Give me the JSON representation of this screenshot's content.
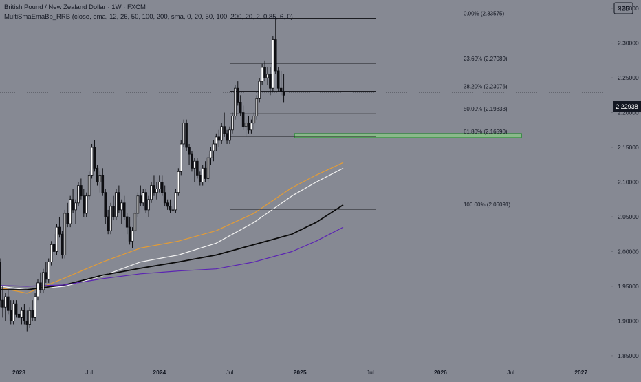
{
  "header": {
    "title": "British Pound / New Zealand Dollar · 1W · FXCM",
    "indicator": "MultiSmaEmaBb_RRB (close, ema, 12, 26, 50, 100, 200, sma, 0, 20, 50, 100, 200, 20, 2, 0.85, 6, 0)"
  },
  "currency_label": "NZD",
  "current_price": "2.22938",
  "colors": {
    "background": "#868993",
    "candle": "#0e0f13",
    "fib_line": "#1c1d22",
    "ema_orange": "#e39c36",
    "ema_white": "#f2f2f2",
    "ema_black": "#0a0a0a",
    "ema_purple": "#5b24b3",
    "zone_fill": "#8ab98a",
    "zone_border": "#2f8a3a",
    "price_badge": "#131722"
  },
  "chart_data": {
    "type": "candlestick",
    "symbol": "GBPNZD",
    "timeframe": "1W",
    "y_axis": {
      "ylim": [
        1.84,
        2.36
      ],
      "ticks": [
        "1.85000",
        "1.90000",
        "1.95000",
        "2.00000",
        "2.05000",
        "2.10000",
        "2.15000",
        "2.20000",
        "2.25000",
        "2.30000",
        "2.35000"
      ]
    },
    "x_axis": {
      "range": [
        "2022-11-14",
        "2027-03-15"
      ],
      "ticks": [
        {
          "label": "2023",
          "date": "2023-01-02"
        },
        {
          "label": "Jul",
          "date": "2023-07-03"
        },
        {
          "label": "2024",
          "date": "2024-01-01"
        },
        {
          "label": "Jul",
          "date": "2024-07-01"
        },
        {
          "label": "2025",
          "date": "2024-12-30"
        },
        {
          "label": "Jul",
          "date": "2025-06-30"
        },
        {
          "label": "2026",
          "date": "2025-12-29"
        },
        {
          "label": "Jul",
          "date": "2026-06-29"
        },
        {
          "label": "2027",
          "date": "2026-12-28"
        }
      ]
    },
    "candles": {
      "start": "2022-11-14",
      "interval_days": 7,
      "ohlc": [
        [
          1.985,
          1.99,
          1.92,
          1.93
        ],
        [
          1.93,
          1.95,
          1.905,
          1.92
        ],
        [
          1.92,
          1.94,
          1.9,
          1.935
        ],
        [
          1.935,
          1.945,
          1.91,
          1.915
        ],
        [
          1.915,
          1.93,
          1.895,
          1.9
        ],
        [
          1.9,
          1.93,
          1.895,
          1.925
        ],
        [
          1.925,
          1.93,
          1.905,
          1.91
        ],
        [
          1.91,
          1.925,
          1.89,
          1.905
        ],
        [
          1.905,
          1.92,
          1.895,
          1.915
        ],
        [
          1.915,
          1.925,
          1.895,
          1.9
        ],
        [
          1.9,
          1.915,
          1.885,
          1.895
        ],
        [
          1.895,
          1.92,
          1.89,
          1.915
        ],
        [
          1.915,
          1.93,
          1.9,
          1.905
        ],
        [
          1.905,
          1.94,
          1.9,
          1.935
        ],
        [
          1.935,
          1.96,
          1.93,
          1.955
        ],
        [
          1.955,
          1.97,
          1.94,
          1.945
        ],
        [
          1.945,
          1.975,
          1.94,
          1.97
        ],
        [
          1.97,
          1.985,
          1.955,
          1.96
        ],
        [
          1.96,
          1.99,
          1.955,
          1.985
        ],
        [
          1.985,
          2.015,
          1.98,
          2.01
        ],
        [
          2.01,
          2.025,
          1.995,
          2.0
        ],
        [
          2.0,
          2.04,
          1.995,
          2.035
        ],
        [
          2.035,
          2.05,
          2.02,
          2.025
        ],
        [
          2.025,
          2.03,
          1.99,
          1.995
        ],
        [
          1.995,
          2.06,
          1.99,
          2.055
        ],
        [
          2.055,
          2.07,
          2.035,
          2.04
        ],
        [
          2.04,
          2.08,
          2.035,
          2.075
        ],
        [
          2.075,
          2.09,
          2.055,
          2.06
        ],
        [
          2.06,
          2.075,
          2.04,
          2.07
        ],
        [
          2.07,
          2.1,
          2.065,
          2.095
        ],
        [
          2.095,
          2.105,
          2.075,
          2.08
        ],
        [
          2.08,
          2.09,
          2.05,
          2.055
        ],
        [
          2.055,
          2.085,
          2.05,
          2.08
        ],
        [
          2.08,
          2.115,
          2.075,
          2.11
        ],
        [
          2.11,
          2.155,
          2.105,
          2.15
        ],
        [
          2.15,
          2.16,
          2.115,
          2.12
        ],
        [
          2.12,
          2.125,
          2.095,
          2.1
        ],
        [
          2.1,
          2.115,
          2.085,
          2.11
        ],
        [
          2.11,
          2.12,
          2.08,
          2.085
        ],
        [
          2.085,
          2.09,
          2.04,
          2.05
        ],
        [
          2.05,
          2.06,
          2.025,
          2.03
        ],
        [
          2.03,
          2.07,
          2.025,
          2.065
        ],
        [
          2.065,
          2.08,
          2.045,
          2.05
        ],
        [
          2.05,
          2.09,
          2.045,
          2.085
        ],
        [
          2.085,
          2.095,
          2.055,
          2.06
        ],
        [
          2.06,
          2.075,
          2.04,
          2.07
        ],
        [
          2.07,
          2.08,
          2.045,
          2.05
        ],
        [
          2.05,
          2.055,
          2.025,
          2.035
        ],
        [
          2.035,
          2.05,
          2.01,
          2.015
        ],
        [
          2.015,
          2.035,
          2.005,
          2.03
        ],
        [
          2.03,
          2.06,
          2.025,
          2.055
        ],
        [
          2.055,
          2.085,
          2.05,
          2.08
        ],
        [
          2.08,
          2.095,
          2.065,
          2.07
        ],
        [
          2.07,
          2.09,
          2.065,
          2.085
        ],
        [
          2.085,
          2.09,
          2.055,
          2.06
        ],
        [
          2.06,
          2.08,
          2.05,
          2.075
        ],
        [
          2.075,
          2.1,
          2.07,
          2.095
        ],
        [
          2.095,
          2.11,
          2.08,
          2.085
        ],
        [
          2.085,
          2.1,
          2.075,
          2.09
        ],
        [
          2.09,
          2.11,
          2.085,
          2.1
        ],
        [
          2.1,
          2.11,
          2.08,
          2.085
        ],
        [
          2.085,
          2.095,
          2.065,
          2.07
        ],
        [
          2.07,
          2.075,
          2.06,
          2.065
        ],
        [
          2.065,
          2.075,
          2.055,
          2.06
        ],
        [
          2.06,
          2.065,
          2.055,
          2.06
        ],
        [
          2.06,
          2.09,
          2.055,
          2.085
        ],
        [
          2.085,
          2.12,
          2.08,
          2.115
        ],
        [
          2.115,
          2.16,
          2.11,
          2.155
        ],
        [
          2.155,
          2.19,
          2.15,
          2.185
        ],
        [
          2.185,
          2.19,
          2.145,
          2.15
        ],
        [
          2.15,
          2.155,
          2.125,
          2.14
        ],
        [
          2.14,
          2.145,
          2.115,
          2.12
        ],
        [
          2.12,
          2.135,
          2.1,
          2.13
        ],
        [
          2.13,
          2.135,
          2.105,
          2.11
        ],
        [
          2.11,
          2.115,
          2.095,
          2.1
        ],
        [
          2.1,
          2.125,
          2.095,
          2.12
        ],
        [
          2.12,
          2.13,
          2.1,
          2.105
        ],
        [
          2.105,
          2.14,
          2.1,
          2.135
        ],
        [
          2.135,
          2.15,
          2.125,
          2.145
        ],
        [
          2.145,
          2.16,
          2.13,
          2.155
        ],
        [
          2.155,
          2.17,
          2.145,
          2.165
        ],
        [
          2.165,
          2.175,
          2.15,
          2.16
        ],
        [
          2.16,
          2.185,
          2.155,
          2.18
        ],
        [
          2.18,
          2.2,
          2.165,
          2.17
        ],
        [
          2.17,
          2.175,
          2.155,
          2.16
        ],
        [
          2.16,
          2.18,
          2.155,
          2.175
        ],
        [
          2.175,
          2.2,
          2.17,
          2.195
        ],
        [
          2.195,
          2.24,
          2.19,
          2.235
        ],
        [
          2.235,
          2.245,
          2.21,
          2.215
        ],
        [
          2.215,
          2.225,
          2.195,
          2.2
        ],
        [
          2.2,
          2.21,
          2.175,
          2.18
        ],
        [
          2.18,
          2.19,
          2.165,
          2.185
        ],
        [
          2.185,
          2.195,
          2.17,
          2.175
        ],
        [
          2.175,
          2.19,
          2.17,
          2.185
        ],
        [
          2.185,
          2.2,
          2.175,
          2.195
        ],
        [
          2.195,
          2.225,
          2.19,
          2.22
        ],
        [
          2.22,
          2.25,
          2.215,
          2.245
        ],
        [
          2.245,
          2.27,
          2.24,
          2.265
        ],
        [
          2.265,
          2.275,
          2.245,
          2.25
        ],
        [
          2.25,
          2.265,
          2.24,
          2.255
        ],
        [
          2.255,
          2.265,
          2.225,
          2.235
        ],
        [
          2.235,
          2.31,
          2.23,
          2.305
        ],
        [
          2.305,
          2.336,
          2.255,
          2.26
        ],
        [
          2.26,
          2.265,
          2.23,
          2.235
        ],
        [
          2.235,
          2.26,
          2.225,
          2.23
        ],
        [
          2.23,
          2.255,
          2.215,
          2.225
        ]
      ]
    },
    "moving_averages": [
      {
        "color": "#e39c36",
        "x": [
          "2022-11-14",
          "2023-01-23",
          "2023-05-01",
          "2023-08-07",
          "2023-11-13",
          "2024-02-19",
          "2024-05-27",
          "2024-09-02",
          "2024-12-09",
          "2025-02-10",
          "2025-04-21"
        ],
        "y": [
          1.948,
          1.94,
          1.962,
          1.985,
          2.005,
          2.015,
          2.03,
          2.055,
          2.092,
          2.11,
          2.128
        ]
      },
      {
        "color": "#f2f2f2",
        "x": [
          "2022-11-14",
          "2023-01-23",
          "2023-05-01",
          "2023-08-07",
          "2023-11-13",
          "2024-02-19",
          "2024-05-27",
          "2024-09-02",
          "2024-12-09",
          "2025-02-10",
          "2025-04-21"
        ],
        "y": [
          1.95,
          1.945,
          1.95,
          1.965,
          1.985,
          1.995,
          2.012,
          2.042,
          2.08,
          2.1,
          2.12
        ]
      },
      {
        "color": "#0a0a0a",
        "x": [
          "2022-11-14",
          "2023-01-23",
          "2023-05-01",
          "2023-08-07",
          "2023-11-13",
          "2024-02-19",
          "2024-05-27",
          "2024-09-02",
          "2024-12-09",
          "2025-02-10",
          "2025-04-21"
        ],
        "y": [
          1.945,
          1.945,
          1.952,
          1.966,
          1.976,
          1.985,
          1.995,
          2.01,
          2.025,
          2.042,
          2.067
        ]
      },
      {
        "color": "#5b24b3",
        "x": [
          "2022-11-14",
          "2023-01-23",
          "2023-05-01",
          "2023-08-07",
          "2023-11-13",
          "2024-02-19",
          "2024-05-27",
          "2024-09-02",
          "2024-12-09",
          "2025-02-10",
          "2025-04-21"
        ],
        "y": [
          1.951,
          1.95,
          1.952,
          1.961,
          1.968,
          1.972,
          1.975,
          1.985,
          2.0,
          2.015,
          2.035
        ]
      }
    ],
    "fibonacci": {
      "x_range": [
        "2024-07-01",
        "2025-07-14"
      ],
      "levels": [
        {
          "label": "0.00% (2.33575)",
          "price": 2.33575
        },
        {
          "label": "23.60% (2.27089)",
          "price": 2.27089
        },
        {
          "label": "38.20% (2.23076)",
          "price": 2.23076
        },
        {
          "label": "50.00% (2.19833)",
          "price": 2.19833
        },
        {
          "label": "61.80% (2.16590)",
          "price": 2.1659
        },
        {
          "label": "100.00% (2.06091)",
          "price": 2.06091
        }
      ]
    },
    "zone": {
      "x_range": [
        "2024-12-16",
        "2026-07-27"
      ],
      "y_range": [
        2.1655,
        2.1685
      ]
    },
    "current_price_value": 2.22938
  }
}
